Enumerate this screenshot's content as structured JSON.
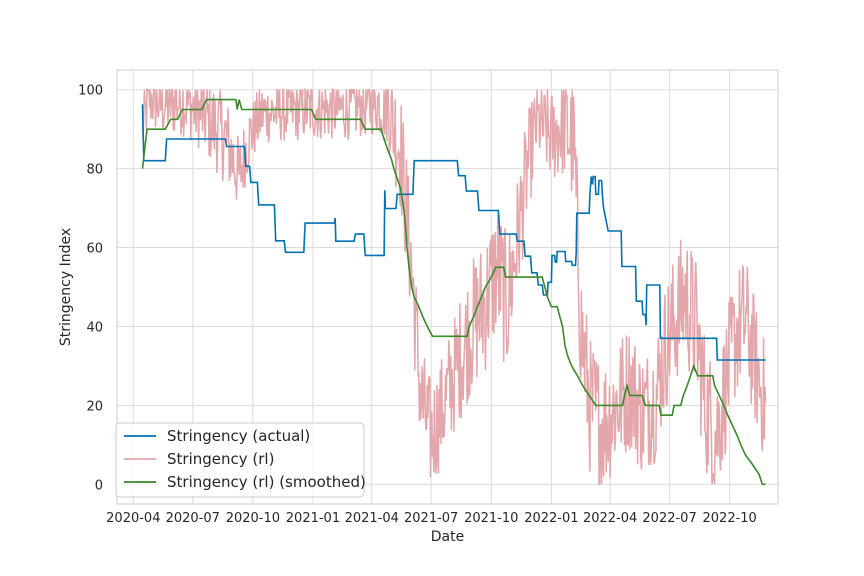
{
  "chart_data": {
    "type": "line",
    "title": "",
    "xlabel": "Date",
    "ylabel": "Stringency Index",
    "ylim": [
      -5,
      105
    ],
    "xlim": [
      "2020-03-07",
      "2022-12-14"
    ],
    "grid": true,
    "legend_position": "lower-left",
    "x_ticks": [
      "2020-04",
      "2020-07",
      "2020-10",
      "2021-01",
      "2021-04",
      "2021-07",
      "2021-10",
      "2022-01",
      "2022-04",
      "2022-07",
      "2022-10"
    ],
    "y_ticks": [
      0,
      20,
      40,
      60,
      80,
      100
    ],
    "colors": {
      "actual": "#0072b2",
      "rl": "#e3a6ab",
      "smoothed": "#3a8a2a",
      "grid": "#dddddd",
      "frame": "#cccccc"
    },
    "series": [
      {
        "name": "Stringency (actual)",
        "key": "actual",
        "points": [
          [
            "2020-04-15",
            96.3
          ],
          [
            "2020-04-17",
            82
          ],
          [
            "2020-05-20",
            82
          ],
          [
            "2020-05-22",
            87.5
          ],
          [
            "2020-08-20",
            87.5
          ],
          [
            "2020-08-22",
            85.6
          ],
          [
            "2020-09-18",
            85.6
          ],
          [
            "2020-09-20",
            80.6
          ],
          [
            "2020-09-26",
            80.6
          ],
          [
            "2020-09-28",
            76.5
          ],
          [
            "2020-10-08",
            76.5
          ],
          [
            "2020-10-10",
            70.8
          ],
          [
            "2020-11-03",
            70.8
          ],
          [
            "2020-11-05",
            61.7
          ],
          [
            "2020-11-18",
            61.7
          ],
          [
            "2020-11-20",
            58.8
          ],
          [
            "2020-12-18",
            58.8
          ],
          [
            "2020-12-20",
            66.2
          ],
          [
            "2021-02-03",
            66.2
          ],
          [
            "2021-02-04",
            67.5
          ],
          [
            "2021-02-05",
            61.6
          ],
          [
            "2021-03-05",
            61.6
          ],
          [
            "2021-03-07",
            63.4
          ],
          [
            "2021-03-20",
            63.4
          ],
          [
            "2021-03-22",
            58
          ],
          [
            "2021-04-20",
            58
          ],
          [
            "2021-04-21",
            74.5
          ],
          [
            "2021-04-22",
            69.9
          ],
          [
            "2021-05-08",
            69.9
          ],
          [
            "2021-05-10",
            73.5
          ],
          [
            "2021-06-03",
            73.5
          ],
          [
            "2021-06-05",
            82
          ],
          [
            "2021-08-10",
            82
          ],
          [
            "2021-08-12",
            78.2
          ],
          [
            "2021-08-22",
            78.2
          ],
          [
            "2021-08-24",
            74.3
          ],
          [
            "2021-09-10",
            74.3
          ],
          [
            "2021-09-12",
            69.4
          ],
          [
            "2021-10-12",
            69.4
          ],
          [
            "2021-10-14",
            63.4
          ],
          [
            "2021-11-08",
            63.4
          ],
          [
            "2021-11-10",
            61.6
          ],
          [
            "2021-11-20",
            61.6
          ],
          [
            "2021-11-22",
            57.8
          ],
          [
            "2021-11-30",
            57.8
          ],
          [
            "2021-12-02",
            53.6
          ],
          [
            "2021-12-10",
            53.6
          ],
          [
            "2021-12-12",
            50.5
          ],
          [
            "2021-12-18",
            50.5
          ],
          [
            "2021-12-20",
            48
          ],
          [
            "2021-12-26",
            48
          ],
          [
            "2021-12-27",
            51.2
          ],
          [
            "2022-01-01",
            51.2
          ],
          [
            "2022-01-02",
            58
          ],
          [
            "2022-01-06",
            58
          ],
          [
            "2022-01-07",
            56.3
          ],
          [
            "2022-01-09",
            56.3
          ],
          [
            "2022-01-10",
            59
          ],
          [
            "2022-01-22",
            59
          ],
          [
            "2022-01-23",
            56.5
          ],
          [
            "2022-02-01",
            56.5
          ],
          [
            "2022-02-02",
            55.5
          ],
          [
            "2022-02-07",
            55.5
          ],
          [
            "2022-02-08",
            58.6
          ],
          [
            "2022-02-09",
            68.7
          ],
          [
            "2022-02-28",
            68.7
          ],
          [
            "2022-03-01",
            73.5
          ],
          [
            "2022-03-03",
            78
          ],
          [
            "2022-03-05",
            76
          ],
          [
            "2022-03-06",
            78
          ],
          [
            "2022-03-09",
            78
          ],
          [
            "2022-03-10",
            73.5
          ],
          [
            "2022-03-14",
            73.5
          ],
          [
            "2022-03-15",
            77
          ],
          [
            "2022-03-19",
            77
          ],
          [
            "2022-03-20",
            73.5
          ],
          [
            "2022-03-22",
            70
          ],
          [
            "2022-03-29",
            64.2
          ],
          [
            "2022-04-18",
            64.2
          ],
          [
            "2022-04-19",
            55.2
          ],
          [
            "2022-05-10",
            55.2
          ],
          [
            "2022-05-11",
            46.4
          ],
          [
            "2022-05-20",
            46.4
          ],
          [
            "2022-05-21",
            43
          ],
          [
            "2022-05-25",
            43
          ],
          [
            "2022-05-26",
            40.3
          ],
          [
            "2022-05-27",
            50.5
          ],
          [
            "2022-06-16",
            50.5
          ],
          [
            "2022-06-17",
            37
          ],
          [
            "2022-09-11",
            37
          ],
          [
            "2022-09-12",
            31.5
          ],
          [
            "2022-11-25",
            31.5
          ]
        ]
      },
      {
        "name": "Stringency (rl)",
        "key": "rl",
        "anchors": [
          [
            "2020-04-15",
            90
          ],
          [
            "2020-04-25",
            98
          ],
          [
            "2020-05-15",
            96
          ],
          [
            "2020-06-15",
            97
          ],
          [
            "2020-07-15",
            94
          ],
          [
            "2020-08-20",
            88
          ],
          [
            "2020-09-10",
            78
          ],
          [
            "2020-09-25",
            88
          ],
          [
            "2020-10-15",
            94
          ],
          [
            "2020-12-15",
            95
          ],
          [
            "2021-02-15",
            95
          ],
          [
            "2021-03-25",
            96
          ],
          [
            "2021-04-25",
            97
          ],
          [
            "2021-05-15",
            85
          ],
          [
            "2021-06-01",
            55
          ],
          [
            "2021-06-15",
            22
          ],
          [
            "2021-07-01",
            12
          ],
          [
            "2021-07-20",
            20
          ],
          [
            "2021-08-10",
            30
          ],
          [
            "2021-09-01",
            40
          ],
          [
            "2021-09-20",
            45
          ],
          [
            "2021-10-10",
            55
          ],
          [
            "2021-10-25",
            45
          ],
          [
            "2021-11-10",
            62
          ],
          [
            "2021-11-25",
            80
          ],
          [
            "2021-12-10",
            92
          ],
          [
            "2022-01-01",
            88
          ],
          [
            "2022-01-20",
            92
          ],
          [
            "2022-02-05",
            85
          ],
          [
            "2022-02-15",
            40
          ],
          [
            "2022-03-01",
            20
          ],
          [
            "2022-03-20",
            15
          ],
          [
            "2022-04-10",
            20
          ],
          [
            "2022-05-01",
            25
          ],
          [
            "2022-05-20",
            18
          ],
          [
            "2022-06-10",
            22
          ],
          [
            "2022-06-25",
            35
          ],
          [
            "2022-07-10",
            42
          ],
          [
            "2022-07-25",
            48
          ],
          [
            "2022-08-10",
            40
          ],
          [
            "2022-08-25",
            20
          ],
          [
            "2022-09-10",
            12
          ],
          [
            "2022-09-25",
            25
          ],
          [
            "2022-10-10",
            38
          ],
          [
            "2022-10-25",
            42
          ],
          [
            "2022-11-10",
            30
          ],
          [
            "2022-11-25",
            20
          ]
        ],
        "noise": [
          [
            "2020-04-15",
            8
          ],
          [
            "2020-07-01",
            9
          ],
          [
            "2020-08-15",
            12
          ],
          [
            "2020-10-01",
            8
          ],
          [
            "2021-01-01",
            8
          ],
          [
            "2021-04-10",
            8
          ],
          [
            "2021-05-15",
            16
          ],
          [
            "2021-07-15",
            14
          ],
          [
            "2021-09-15",
            18
          ],
          [
            "2021-11-01",
            18
          ],
          [
            "2021-12-15",
            10
          ],
          [
            "2022-02-15",
            18
          ],
          [
            "2022-06-01",
            16
          ],
          [
            "2022-08-01",
            18
          ],
          [
            "2022-11-25",
            16
          ]
        ]
      },
      {
        "name": "Stringency (rl) (smoothed)",
        "key": "smoothed",
        "points": [
          [
            "2020-04-15",
            80
          ],
          [
            "2020-04-22",
            90
          ],
          [
            "2020-05-20",
            90
          ],
          [
            "2020-05-28",
            92.5
          ],
          [
            "2020-06-08",
            92.5
          ],
          [
            "2020-06-15",
            95
          ],
          [
            "2020-07-15",
            95
          ],
          [
            "2020-07-22",
            97.5
          ],
          [
            "2020-09-05",
            97.5
          ],
          [
            "2020-09-07",
            95
          ],
          [
            "2020-09-10",
            97.5
          ],
          [
            "2020-09-14",
            95
          ],
          [
            "2020-12-30",
            95
          ],
          [
            "2021-01-05",
            92.5
          ],
          [
            "2021-03-15",
            92.5
          ],
          [
            "2021-03-22",
            90
          ],
          [
            "2021-04-15",
            90
          ],
          [
            "2021-04-20",
            87.5
          ],
          [
            "2021-04-25",
            85
          ],
          [
            "2021-05-01",
            82.5
          ],
          [
            "2021-05-05",
            80
          ],
          [
            "2021-05-10",
            77.5
          ],
          [
            "2021-05-15",
            75
          ],
          [
            "2021-05-20",
            70
          ],
          [
            "2021-05-23",
            65
          ],
          [
            "2021-05-25",
            60
          ],
          [
            "2021-05-28",
            55
          ],
          [
            "2021-06-01",
            50
          ],
          [
            "2021-06-05",
            47.5
          ],
          [
            "2021-06-12",
            45
          ],
          [
            "2021-06-18",
            42.5
          ],
          [
            "2021-06-25",
            40
          ],
          [
            "2021-07-03",
            37.5
          ],
          [
            "2021-08-25",
            37.5
          ],
          [
            "2021-08-28",
            40
          ],
          [
            "2021-09-04",
            42.5
          ],
          [
            "2021-09-10",
            45
          ],
          [
            "2021-09-16",
            47.5
          ],
          [
            "2021-09-22",
            50
          ],
          [
            "2021-10-01",
            52.5
          ],
          [
            "2021-10-08",
            55
          ],
          [
            "2021-10-20",
            55
          ],
          [
            "2021-10-23",
            52.5
          ],
          [
            "2021-12-18",
            52.5
          ],
          [
            "2021-12-22",
            50
          ],
          [
            "2021-12-26",
            47.5
          ],
          [
            "2022-01-01",
            45
          ],
          [
            "2022-01-10",
            45
          ],
          [
            "2022-01-14",
            42.5
          ],
          [
            "2022-01-18",
            40
          ],
          [
            "2022-01-22",
            35
          ],
          [
            "2022-01-26",
            32.5
          ],
          [
            "2022-02-01",
            30
          ],
          [
            "2022-02-10",
            27.5
          ],
          [
            "2022-02-18",
            25
          ],
          [
            "2022-02-28",
            22.5
          ],
          [
            "2022-03-10",
            20
          ],
          [
            "2022-04-20",
            20
          ],
          [
            "2022-04-23",
            22.5
          ],
          [
            "2022-04-27",
            25
          ],
          [
            "2022-05-01",
            22.5
          ],
          [
            "2022-05-20",
            22.5
          ],
          [
            "2022-05-25",
            20
          ],
          [
            "2022-06-15",
            20
          ],
          [
            "2022-06-18",
            17.5
          ],
          [
            "2022-07-05",
            17.5
          ],
          [
            "2022-07-08",
            20
          ],
          [
            "2022-07-18",
            20
          ],
          [
            "2022-07-22",
            22.5
          ],
          [
            "2022-07-28",
            25
          ],
          [
            "2022-08-02",
            27.5
          ],
          [
            "2022-08-07",
            30
          ],
          [
            "2022-08-13",
            27.5
          ],
          [
            "2022-09-05",
            27.5
          ],
          [
            "2022-09-08",
            25
          ],
          [
            "2022-09-15",
            22.5
          ],
          [
            "2022-09-22",
            20
          ],
          [
            "2022-09-28",
            17.5
          ],
          [
            "2022-10-05",
            15
          ],
          [
            "2022-10-12",
            12.5
          ],
          [
            "2022-10-18",
            10
          ],
          [
            "2022-10-25",
            7.5
          ],
          [
            "2022-11-05",
            5
          ],
          [
            "2022-11-15",
            2.5
          ],
          [
            "2022-11-20",
            0
          ],
          [
            "2022-11-25",
            0
          ]
        ]
      }
    ]
  }
}
